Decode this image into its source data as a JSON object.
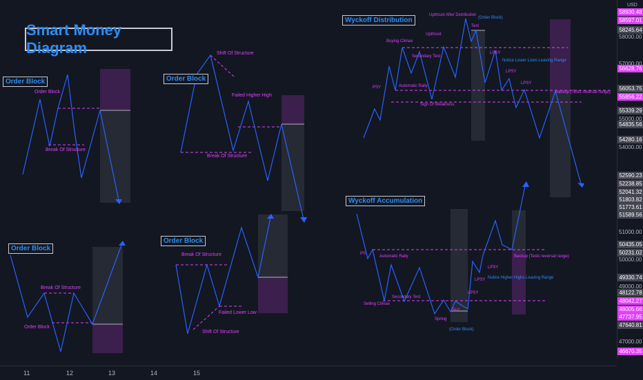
{
  "title": "Smart Money Diagram",
  "panels": {
    "ob1": {
      "box": "Order Block",
      "labels": [
        "Order Block",
        "Break Of Structure"
      ]
    },
    "ob2": {
      "box": "Order Block",
      "labels": [
        "Shift Of Structure",
        "Failed Higher High",
        "Break Of Structure"
      ]
    },
    "ob3": {
      "box": "Order Block",
      "labels": [
        "Break Of Structure",
        "Order Block"
      ]
    },
    "ob4": {
      "box": "Order Block",
      "labels": [
        "Break Of Structure",
        "Failed Lower Low",
        "Shift Of Structure"
      ]
    },
    "distribution": {
      "box": "Wyckoff Distribution",
      "labels": [
        "Upthrust After Distribution",
        "Test",
        "Buying Climax",
        "Upthrust",
        "Secondary Test",
        "LPSY",
        "PSY",
        "Automatic Rally",
        "LPSY",
        "LPSY",
        "Backup (Tests reversal range)",
        "Sign Of Weakness"
      ],
      "blue_labels": [
        "(Order Block)",
        "Notice Lower Lows Leaving Range"
      ]
    },
    "accumulation": {
      "box": "Wyckoff Accumulation",
      "labels": [
        "PS",
        "Automatic Rally",
        "Backup (Tests reversal range)",
        "LPSY",
        "LPSY",
        "LPSY",
        "Selling Climax",
        "Secondary Test",
        "Spring",
        "Test"
      ],
      "blue_labels": [
        "Notice Higher Highs Leaving Range",
        "(Order Block)"
      ]
    }
  },
  "price_axis": {
    "currency": "USD",
    "ticks": [
      "58000.00",
      "57000.00",
      "55000.00",
      "54000.00",
      "51000.00",
      "50000.00",
      "49000.00",
      "47000.00"
    ],
    "boxes": [
      {
        "value": "58930.48",
        "color": "#e040fb"
      },
      {
        "value": "58597.01",
        "color": "#e040fb"
      },
      {
        "value": "58245.64",
        "color": "#434651"
      },
      {
        "value": "56628.76",
        "color": "#e040fb"
      },
      {
        "value": "56053.75",
        "color": "#434651"
      },
      {
        "value": "55856.22",
        "color": "#e040fb"
      },
      {
        "value": "55339.29",
        "color": "#434651"
      },
      {
        "value": "54835.56",
        "color": "#434651"
      },
      {
        "value": "54280.16",
        "color": "#434651"
      },
      {
        "value": "52590.23",
        "color": "#434651"
      },
      {
        "value": "52238.85",
        "color": "#434651"
      },
      {
        "value": "52041.32",
        "color": "#434651"
      },
      {
        "value": "51803.82",
        "color": "#434651"
      },
      {
        "value": "51773.61",
        "color": "#434651"
      },
      {
        "value": "51589.56",
        "color": "#434651"
      },
      {
        "value": "50435.05",
        "color": "#434651"
      },
      {
        "value": "50231.02",
        "color": "#434651"
      },
      {
        "value": "49330.74",
        "color": "#434651"
      },
      {
        "value": "48122.78",
        "color": "#434651"
      },
      {
        "value": "48042.27",
        "color": "#e040fb"
      },
      {
        "value": "48005.66",
        "color": "#e040fb"
      },
      {
        "value": "47737.95",
        "color": "#e040fb"
      },
      {
        "value": "47640.81",
        "color": "#434651"
      },
      {
        "value": "46670.35",
        "color": "#e040fb"
      }
    ]
  },
  "time_axis": [
    "11",
    "12",
    "13",
    "14",
    "15"
  ],
  "colors": {
    "line": "#2962ff",
    "marker": "#e040fb",
    "zone_gray": "#2a2e39",
    "zone_purple": "#3d1f4f",
    "text_blue": "#2f8cf0"
  }
}
